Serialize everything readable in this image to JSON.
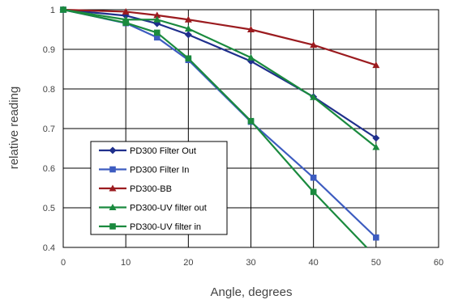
{
  "chart_data": {
    "type": "line",
    "title": "",
    "xlabel": "Angle, degrees",
    "ylabel": "relative reading",
    "xlim": [
      0,
      60
    ],
    "ylim": [
      0.4,
      1.0
    ],
    "x_ticks": [
      "0",
      "10",
      "20",
      "30",
      "40",
      "50",
      "60"
    ],
    "y_ticks": [
      "0.4",
      "0.5",
      "0.6",
      "0.7",
      "0.8",
      "0.9",
      "1"
    ],
    "grid": true,
    "legend_position": "bottom-left inside",
    "series": [
      {
        "name": "PD300 Filter Out",
        "color": "#1f2f8c",
        "marker": "diamond",
        "x": [
          0,
          10,
          15,
          20,
          30,
          40,
          50
        ],
        "y": [
          1.0,
          0.985,
          0.965,
          0.937,
          0.87,
          0.78,
          0.676
        ]
      },
      {
        "name": "PD300 Filter In",
        "color": "#3d5cc0",
        "marker": "square",
        "x": [
          0,
          10,
          15,
          20,
          30,
          40,
          50
        ],
        "y": [
          1.0,
          0.966,
          0.93,
          0.873,
          0.717,
          0.576,
          0.425
        ]
      },
      {
        "name": "PD300-BB",
        "color": "#9b1b1f",
        "marker": "triangle",
        "x": [
          0,
          10,
          15,
          20,
          30,
          40,
          50
        ],
        "y": [
          1.0,
          0.995,
          0.986,
          0.975,
          0.95,
          0.911,
          0.86
        ]
      },
      {
        "name": "PD300-UV filter out",
        "color": "#1a8a3e",
        "marker": "triangle",
        "x": [
          0,
          10,
          15,
          20,
          30,
          40,
          50
        ],
        "y": [
          1.0,
          0.975,
          0.975,
          0.952,
          0.879,
          0.779,
          0.653
        ]
      },
      {
        "name": "PD300-UV filter in",
        "color": "#1a8a3e",
        "marker": "square",
        "x": [
          0,
          10,
          15,
          20,
          30,
          40,
          48.5
        ],
        "y": [
          1.0,
          0.967,
          0.942,
          0.877,
          0.719,
          0.54,
          0.4
        ]
      }
    ]
  }
}
